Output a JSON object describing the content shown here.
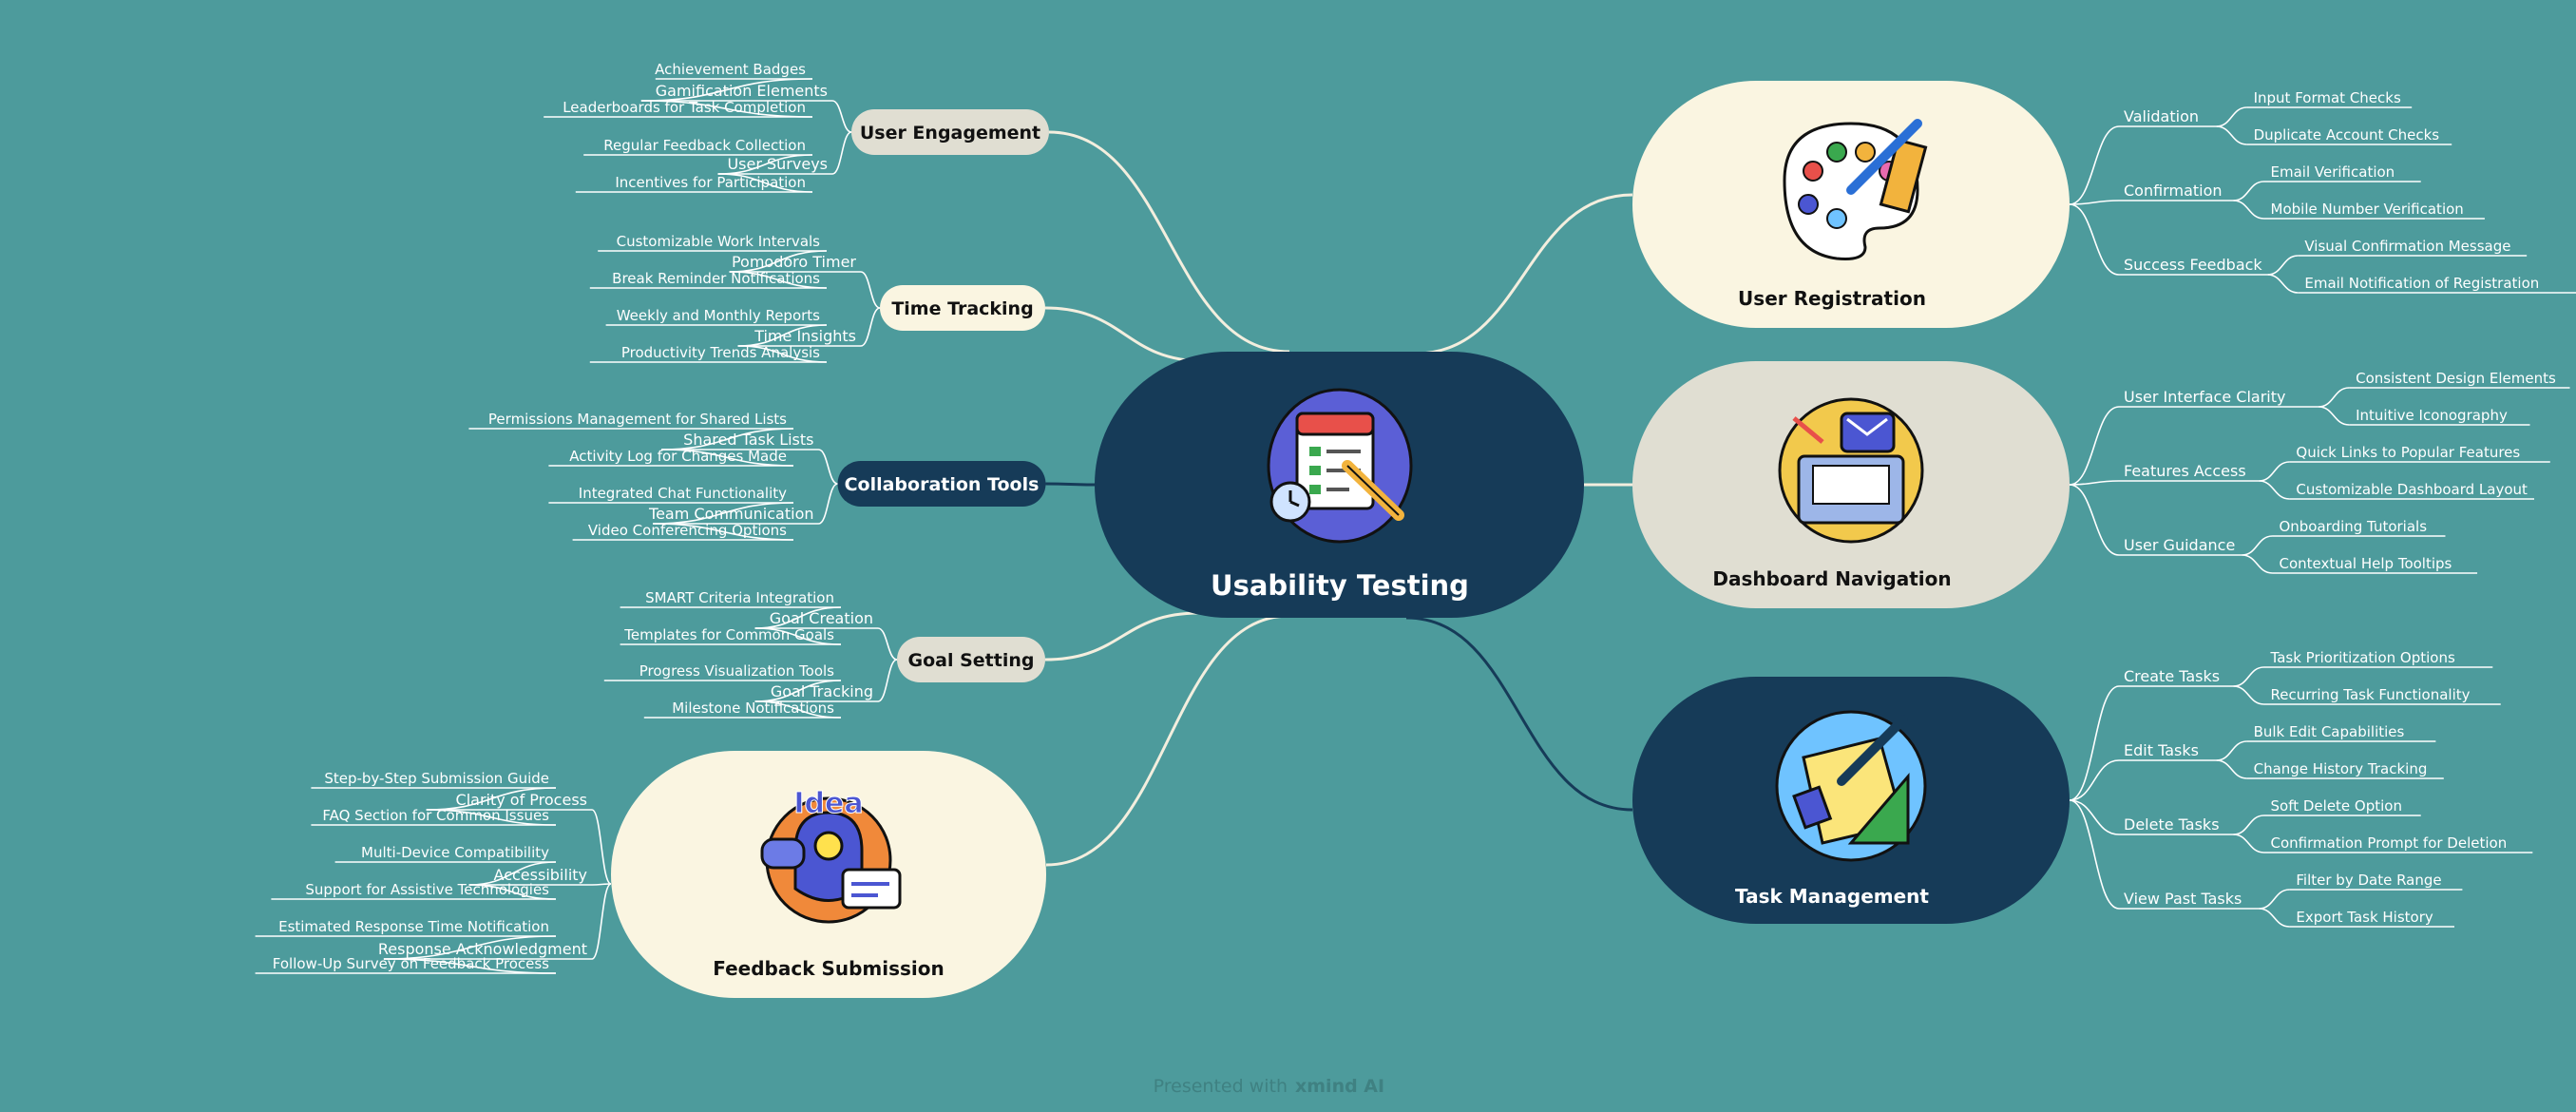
{
  "central": {
    "title": "Usability Testing",
    "icon": "checklist-clock-pencil-icon"
  },
  "left_branches": [
    {
      "label": "User Engagement",
      "style": "beige",
      "children": [
        {
          "label": "Gamification Elements",
          "leaves": [
            "Achievement Badges",
            "Leaderboards for Task Completion"
          ]
        },
        {
          "label": "User Surveys",
          "leaves": [
            "Regular Feedback Collection",
            "Incentives for Participation"
          ]
        }
      ]
    },
    {
      "label": "Time Tracking",
      "style": "cream",
      "children": [
        {
          "label": "Pomodoro Timer",
          "leaves": [
            "Customizable Work Intervals",
            "Break Reminder Notifications"
          ]
        },
        {
          "label": "Time Insights",
          "leaves": [
            "Weekly and Monthly Reports",
            "Productivity Trends Analysis"
          ]
        }
      ]
    },
    {
      "label": "Collaboration Tools",
      "style": "navy",
      "children": [
        {
          "label": "Shared Task Lists",
          "leaves": [
            "Permissions Management for Shared Lists",
            "Activity Log for Changes Made"
          ]
        },
        {
          "label": "Team Communication",
          "leaves": [
            "Integrated Chat Functionality",
            "Video Conferencing Options"
          ]
        }
      ]
    },
    {
      "label": "Goal Setting",
      "style": "beige",
      "children": [
        {
          "label": "Goal Creation",
          "leaves": [
            "SMART Criteria Integration",
            "Templates for Common Goals"
          ]
        },
        {
          "label": "Goal Tracking",
          "leaves": [
            "Progress Visualization Tools",
            "Milestone Notifications"
          ]
        }
      ]
    },
    {
      "label": "Feedback Submission",
      "style": "cream-big",
      "icon": "idea-lightbulb-icon",
      "children": [
        {
          "label": "Clarity of Process",
          "leaves": [
            "Step-by-Step Submission Guide",
            "FAQ Section for Common Issues"
          ]
        },
        {
          "label": "Accessibility",
          "leaves": [
            "Multi-Device Compatibility",
            "Support for Assistive Technologies"
          ]
        },
        {
          "label": "Response Acknowledgment",
          "leaves": [
            "Estimated Response Time Notification",
            "Follow-Up Survey on Feedback Process"
          ]
        }
      ]
    }
  ],
  "right_branches": [
    {
      "label": "User Registration",
      "style": "cream-big",
      "icon": "paint-palette-icon",
      "children": [
        {
          "label": "Validation",
          "leaves": [
            "Input Format Checks",
            "Duplicate Account Checks"
          ]
        },
        {
          "label": "Confirmation",
          "leaves": [
            "Email Verification",
            "Mobile Number Verification"
          ]
        },
        {
          "label": "Success Feedback",
          "leaves": [
            "Visual Confirmation Message",
            "Email Notification of Registration"
          ]
        }
      ]
    },
    {
      "label": "Dashboard Navigation",
      "style": "beige-big",
      "icon": "folder-mail-icon",
      "children": [
        {
          "label": "User Interface Clarity",
          "leaves": [
            "Consistent Design Elements",
            "Intuitive Iconography"
          ]
        },
        {
          "label": "Features Access",
          "leaves": [
            "Quick Links to Popular Features",
            "Customizable Dashboard Layout"
          ]
        },
        {
          "label": "User Guidance",
          "leaves": [
            "Onboarding Tutorials",
            "Contextual Help Tooltips"
          ]
        }
      ]
    },
    {
      "label": "Task Management",
      "style": "navy-big",
      "icon": "notes-pencil-ruler-icon",
      "children": [
        {
          "label": "Create Tasks",
          "leaves": [
            "Task Prioritization Options",
            "Recurring Task Functionality"
          ]
        },
        {
          "label": "Edit Tasks",
          "leaves": [
            "Bulk Edit Capabilities",
            "Change History Tracking"
          ]
        },
        {
          "label": "Delete Tasks",
          "leaves": [
            "Soft Delete Option",
            "Confirmation Prompt for Deletion"
          ]
        },
        {
          "label": "View Past Tasks",
          "leaves": [
            "Filter by Date Range",
            "Export Task History"
          ]
        }
      ]
    }
  ],
  "footer": {
    "prefix": "Presented with",
    "brand": "xmind AI"
  },
  "colors": {
    "background": "#4d9b9c",
    "navy": "#163b58",
    "cream": "#faf5e1",
    "beige": "#e0ded2",
    "connector_light": "#f3eede",
    "leaf_line": "#ffffff"
  }
}
